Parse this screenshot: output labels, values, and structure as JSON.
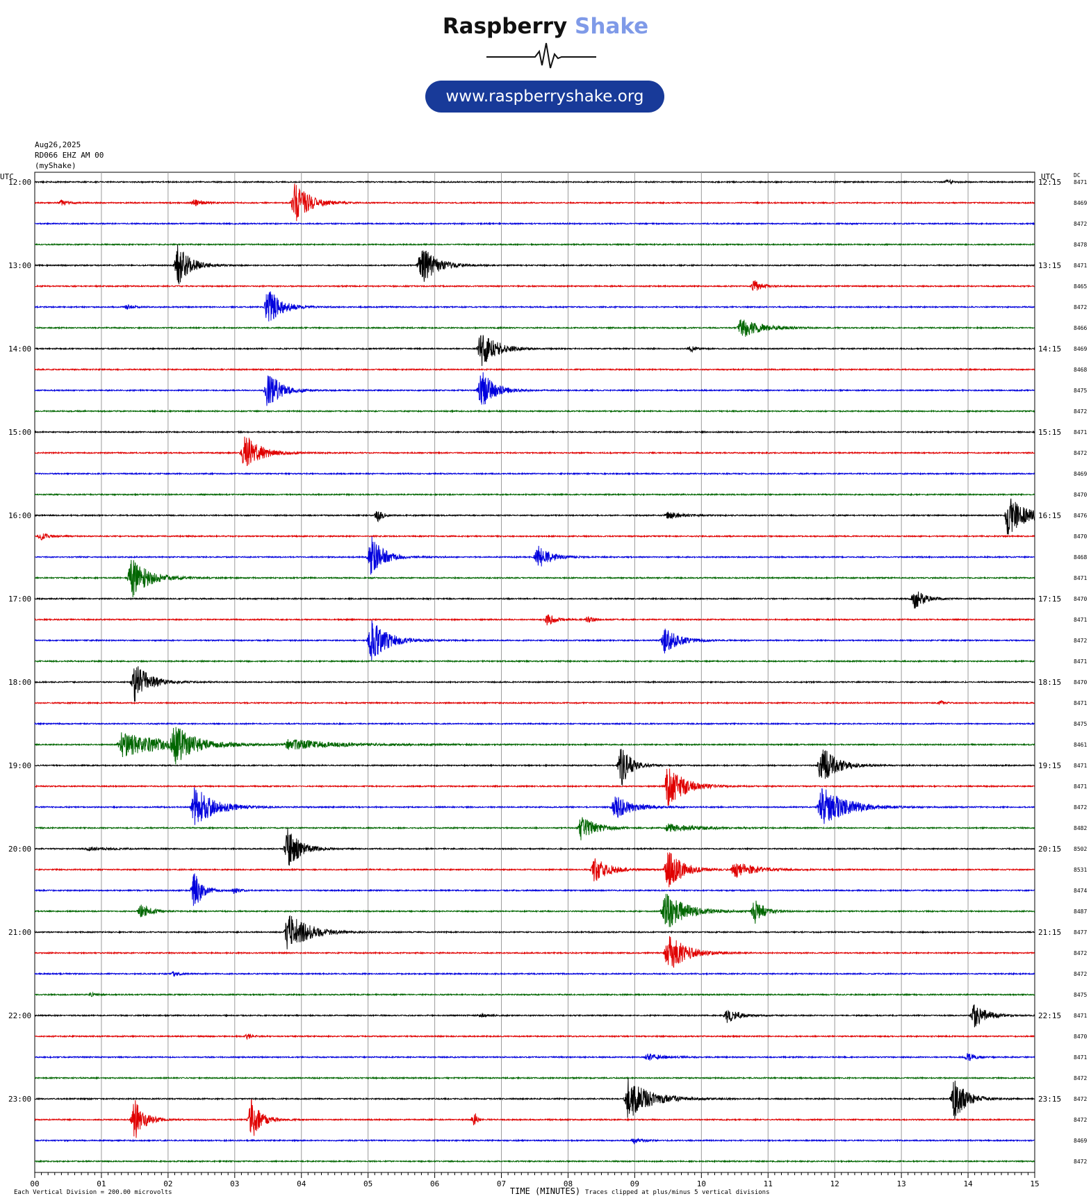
{
  "brand": {
    "name_part1": "Raspberry",
    "name_part2": "Shake",
    "url": "www.raspberryshake.org"
  },
  "header": {
    "date": "Aug26,2025",
    "station": "RD066 EHZ AM 00",
    "source": "(myShake)"
  },
  "colors": [
    "#000000",
    "#e00000",
    "#0000dd",
    "#006600"
  ],
  "chart_data": {
    "type": "line",
    "title": "",
    "xlabel": "TIME (MINUTES)",
    "ylabel": "",
    "left_axis_label": "UTC",
    "right_axis_label": "UTC",
    "dc_label": "DC",
    "x_ticks": [
      "00",
      "01",
      "02",
      "03",
      "04",
      "05",
      "06",
      "07",
      "08",
      "09",
      "10",
      "11",
      "12",
      "13",
      "14",
      "15"
    ],
    "xlim": [
      0,
      15
    ],
    "left_hour_labels": [
      "12:00",
      "13:00",
      "14:00",
      "15:00",
      "16:00",
      "17:00",
      "18:00",
      "19:00",
      "20:00",
      "21:00",
      "22:00",
      "23:00"
    ],
    "right_hour_labels": [
      "12:15",
      "13:15",
      "14:15",
      "15:15",
      "16:15",
      "17:15",
      "18:15",
      "19:15",
      "20:15",
      "21:15",
      "22:15",
      "23:15"
    ],
    "dc_values": [
      "8471",
      "8469",
      "8472",
      "8478",
      "8471",
      "8465",
      "8472",
      "8466",
      "8469",
      "8468",
      "8475",
      "8472",
      "8471",
      "8472",
      "8469",
      "8470",
      "8476",
      "8470",
      "8468",
      "8471",
      "8470",
      "8471",
      "8472",
      "8471",
      "8470",
      "8471",
      "8475",
      "8461",
      "8471",
      "8471",
      "8472",
      "8482",
      "8502",
      "8531",
      "8474",
      "8487",
      "8477",
      "8472",
      "8472",
      "8475",
      "8471",
      "8470",
      "8471",
      "8472",
      "8472",
      "8472",
      "8469",
      "8472"
    ],
    "footer_left": "Each Vertical Division =  200.00 microvolts",
    "footer_right": "Traces clipped at plus/minus 5 vertical divisions",
    "events": [
      {
        "row": 0,
        "t": 13.7,
        "a": 0.5,
        "d": 0.25,
        "s": 1
      },
      {
        "row": 1,
        "t": 0.4,
        "a": 0.6,
        "d": 0.3,
        "s": 1
      },
      {
        "row": 1,
        "t": 2.4,
        "a": 0.8,
        "d": 0.4,
        "s": 2
      },
      {
        "row": 1,
        "t": 3.9,
        "a": 5,
        "d": 0.6,
        "s": 3
      },
      {
        "row": 4,
        "t": 2.15,
        "a": 5,
        "d": 0.5,
        "s": 4
      },
      {
        "row": 4,
        "t": 5.8,
        "a": 5,
        "d": 0.6,
        "s": 5
      },
      {
        "row": 5,
        "t": 10.8,
        "a": 1.5,
        "d": 0.3,
        "s": 6
      },
      {
        "row": 6,
        "t": 1.4,
        "a": 0.7,
        "d": 0.2,
        "s": 7
      },
      {
        "row": 6,
        "t": 3.5,
        "a": 5,
        "d": 0.5,
        "s": 8
      },
      {
        "row": 7,
        "t": 10.6,
        "a": 2.5,
        "d": 0.8,
        "s": 9
      },
      {
        "row": 8,
        "t": 6.7,
        "a": 5,
        "d": 0.6,
        "s": 10
      },
      {
        "row": 8,
        "t": 9.85,
        "a": 0.8,
        "d": 0.2,
        "s": 11
      },
      {
        "row": 10,
        "t": 6.7,
        "a": 5,
        "d": 0.5,
        "s": 12
      },
      {
        "row": 10,
        "t": 3.5,
        "a": 5,
        "d": 0.5,
        "s": 13
      },
      {
        "row": 13,
        "t": 3.15,
        "a": 5,
        "d": 0.6,
        "s": 14
      },
      {
        "row": 16,
        "t": 5.15,
        "a": 1.5,
        "d": 0.2,
        "s": 15
      },
      {
        "row": 16,
        "t": 14.6,
        "a": 5,
        "d": 0.7,
        "s": 16
      },
      {
        "row": 16,
        "t": 9.5,
        "a": 0.8,
        "d": 0.6,
        "s": 17
      },
      {
        "row": 17,
        "t": 0.1,
        "a": 0.8,
        "d": 0.3,
        "s": 18
      },
      {
        "row": 18,
        "t": 7.55,
        "a": 3,
        "d": 0.5,
        "s": 19
      },
      {
        "row": 18,
        "t": 5.05,
        "a": 5,
        "d": 0.5,
        "s": 20
      },
      {
        "row": 19,
        "t": 1.45,
        "a": 5,
        "d": 0.7,
        "s": 21
      },
      {
        "row": 20,
        "t": 13.2,
        "a": 2.5,
        "d": 0.4,
        "s": 22
      },
      {
        "row": 21,
        "t": 7.7,
        "a": 1.5,
        "d": 0.3,
        "s": 23
      },
      {
        "row": 21,
        "t": 8.3,
        "a": 0.7,
        "d": 0.3,
        "s": 24
      },
      {
        "row": 22,
        "t": 9.45,
        "a": 3,
        "d": 0.6,
        "s": 25
      },
      {
        "row": 22,
        "t": 5.05,
        "a": 5,
        "d": 0.7,
        "s": 26
      },
      {
        "row": 24,
        "t": 1.5,
        "a": 5,
        "d": 0.6,
        "s": 27
      },
      {
        "row": 25,
        "t": 13.6,
        "a": 0.6,
        "d": 0.15,
        "s": 28
      },
      {
        "row": 27,
        "t": 1.3,
        "a": 3,
        "d": 2.0,
        "s": 29
      },
      {
        "row": 27,
        "t": 3.8,
        "a": 1.2,
        "d": 2.0,
        "s": 30
      },
      {
        "row": 27,
        "t": 2.1,
        "a": 4,
        "d": 0.7,
        "s": 31
      },
      {
        "row": 28,
        "t": 11.8,
        "a": 5,
        "d": 0.6,
        "s": 32
      },
      {
        "row": 28,
        "t": 8.8,
        "a": 5,
        "d": 0.4,
        "s": 33
      },
      {
        "row": 29,
        "t": 9.5,
        "a": 5,
        "d": 0.7,
        "s": 34
      },
      {
        "row": 30,
        "t": 2.4,
        "a": 5,
        "d": 0.8,
        "s": 35
      },
      {
        "row": 30,
        "t": 8.7,
        "a": 3,
        "d": 0.7,
        "s": 36
      },
      {
        "row": 30,
        "t": 11.8,
        "a": 5,
        "d": 1.0,
        "s": 37
      },
      {
        "row": 31,
        "t": 8.2,
        "a": 3,
        "d": 0.6,
        "s": 38
      },
      {
        "row": 31,
        "t": 9.5,
        "a": 1,
        "d": 1.2,
        "s": 39
      },
      {
        "row": 32,
        "t": 3.8,
        "a": 5,
        "d": 0.5,
        "s": 40
      },
      {
        "row": 32,
        "t": 0.8,
        "a": 0.4,
        "d": 0.8,
        "s": 41
      },
      {
        "row": 33,
        "t": 8.4,
        "a": 3,
        "d": 0.6,
        "s": 42
      },
      {
        "row": 33,
        "t": 9.5,
        "a": 5,
        "d": 0.6,
        "s": 43
      },
      {
        "row": 33,
        "t": 10.5,
        "a": 2,
        "d": 0.8,
        "s": 44
      },
      {
        "row": 34,
        "t": 3.0,
        "a": 0.7,
        "d": 0.2,
        "s": 45
      },
      {
        "row": 34,
        "t": 2.4,
        "a": 5,
        "d": 0.3,
        "s": 46
      },
      {
        "row": 35,
        "t": 1.6,
        "a": 1.8,
        "d": 0.4,
        "s": 47
      },
      {
        "row": 35,
        "t": 9.45,
        "a": 5,
        "d": 0.8,
        "s": 48
      },
      {
        "row": 35,
        "t": 10.8,
        "a": 3,
        "d": 0.4,
        "s": 49
      },
      {
        "row": 36,
        "t": 3.8,
        "a": 5,
        "d": 0.8,
        "s": 50
      },
      {
        "row": 37,
        "t": 9.5,
        "a": 5,
        "d": 0.7,
        "s": 51
      },
      {
        "row": 38,
        "t": 2.1,
        "a": 0.6,
        "d": 0.2,
        "s": 52
      },
      {
        "row": 39,
        "t": 0.85,
        "a": 0.5,
        "d": 0.2,
        "s": 53
      },
      {
        "row": 40,
        "t": 10.4,
        "a": 2,
        "d": 0.4,
        "s": 54
      },
      {
        "row": 40,
        "t": 14.1,
        "a": 3,
        "d": 0.5,
        "s": 55
      },
      {
        "row": 40,
        "t": 6.7,
        "a": 0.4,
        "d": 0.3,
        "s": 56
      },
      {
        "row": 41,
        "t": 3.2,
        "a": 0.6,
        "d": 0.2,
        "s": 57
      },
      {
        "row": 42,
        "t": 9.2,
        "a": 0.8,
        "d": 0.6,
        "s": 58
      },
      {
        "row": 42,
        "t": 14.0,
        "a": 1,
        "d": 0.3,
        "s": 59
      },
      {
        "row": 44,
        "t": 8.9,
        "a": 5,
        "d": 0.9,
        "s": 60
      },
      {
        "row": 44,
        "t": 13.8,
        "a": 5,
        "d": 0.5,
        "s": 61
      },
      {
        "row": 45,
        "t": 1.5,
        "a": 5,
        "d": 0.4,
        "s": 62
      },
      {
        "row": 45,
        "t": 3.25,
        "a": 5,
        "d": 0.4,
        "s": 63
      },
      {
        "row": 45,
        "t": 6.6,
        "a": 2,
        "d": 0.1,
        "s": 64
      },
      {
        "row": 46,
        "t": 9.0,
        "a": 0.8,
        "d": 0.3,
        "s": 65
      }
    ]
  }
}
